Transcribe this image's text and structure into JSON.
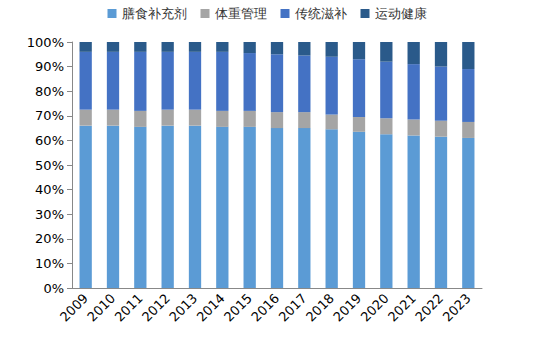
{
  "chart_data": {
    "type": "bar",
    "stacked": true,
    "legend": "top",
    "grid": false,
    "categories": [
      "2009",
      "2010",
      "2011",
      "2012",
      "2013",
      "2014",
      "2015",
      "2016",
      "2017",
      "2018",
      "2019",
      "2020",
      "2021",
      "2022",
      "2023"
    ],
    "ylim": [
      0,
      100
    ],
    "yticks": [
      {
        "value": 0,
        "label": "0%"
      },
      {
        "value": 10,
        "label": "10%"
      },
      {
        "value": 20,
        "label": "20%"
      },
      {
        "value": 30,
        "label": "30%"
      },
      {
        "value": 40,
        "label": "40%"
      },
      {
        "value": 50,
        "label": "50%"
      },
      {
        "value": 60,
        "label": "60%"
      },
      {
        "value": 70,
        "label": "70%"
      },
      {
        "value": 80,
        "label": "80%"
      },
      {
        "value": 90,
        "label": "90%"
      },
      {
        "value": 100,
        "label": "100%"
      }
    ],
    "series": [
      {
        "name": "膳食补充剂",
        "color": "#5b9bd5",
        "values": [
          66,
          66,
          65.5,
          66,
          66,
          65.5,
          65.5,
          65,
          65,
          64.5,
          63.5,
          62.5,
          62,
          61.5,
          61
        ]
      },
      {
        "name": "体重管理",
        "color": "#a5a5a5",
        "values": [
          6.5,
          6.5,
          6.5,
          6.5,
          6.5,
          6.5,
          6.5,
          6.5,
          6.5,
          6,
          6,
          6.5,
          6.5,
          6.5,
          6.5
        ]
      },
      {
        "name": "传统滋补",
        "color": "#4472c4",
        "values": [
          23.5,
          23.5,
          24,
          23.5,
          23.5,
          24,
          23.5,
          23.5,
          23,
          23.5,
          23.5,
          23,
          22.5,
          22,
          21.5
        ]
      },
      {
        "name": "运动健康",
        "color": "#2a5a8a",
        "values": [
          4,
          4,
          4,
          4,
          4,
          4,
          4.5,
          5,
          5.5,
          6,
          7,
          8,
          9,
          10,
          11
        ]
      }
    ]
  }
}
